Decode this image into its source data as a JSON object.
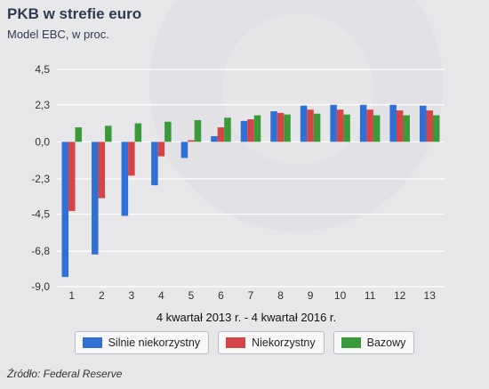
{
  "header": {
    "title": "PKB w strefie euro",
    "subtitle": "Model EBC, w proc."
  },
  "source": "Źródło: Federal Reserve",
  "colors": {
    "background": "#e7e7e9",
    "grid": "#ffffff",
    "axis_text": "#333333"
  },
  "chart_data": {
    "type": "bar",
    "title": "PKB w strefie euro",
    "subtitle": "Model EBC, w proc.",
    "xlabel": "4 kwartał 2013 r. - 4 kwartał 2016 r.",
    "ylabel": "",
    "categories": [
      "1",
      "2",
      "3",
      "4",
      "5",
      "6",
      "7",
      "8",
      "9",
      "10",
      "11",
      "12",
      "13"
    ],
    "yticks": [
      4.5,
      2.3,
      0.0,
      -2.3,
      -4.5,
      -6.8,
      -9.0
    ],
    "ytick_labels": [
      "4,5",
      "2,3",
      "0,0",
      "-2,3",
      "-4,5",
      "-6,8",
      "-9,0"
    ],
    "ylim": [
      -9.0,
      4.5
    ],
    "grid": true,
    "legend_position": "bottom",
    "series": [
      {
        "name": "Silnie niekorzystny",
        "color": "#2f6fd6",
        "values": [
          -8.4,
          -7.0,
          -4.6,
          -2.7,
          -1.0,
          0.35,
          1.3,
          1.9,
          2.25,
          2.3,
          2.3,
          2.3,
          2.25
        ]
      },
      {
        "name": "Niekorzystny",
        "color": "#d64545",
        "values": [
          -4.3,
          -3.5,
          -2.1,
          -0.9,
          0.1,
          0.9,
          1.4,
          1.8,
          2.0,
          2.0,
          2.0,
          1.95,
          1.95
        ]
      },
      {
        "name": "Bazowy",
        "color": "#3a9a3a",
        "values": [
          0.9,
          1.0,
          1.15,
          1.25,
          1.35,
          1.5,
          1.65,
          1.7,
          1.75,
          1.7,
          1.65,
          1.65,
          1.65
        ]
      }
    ]
  }
}
